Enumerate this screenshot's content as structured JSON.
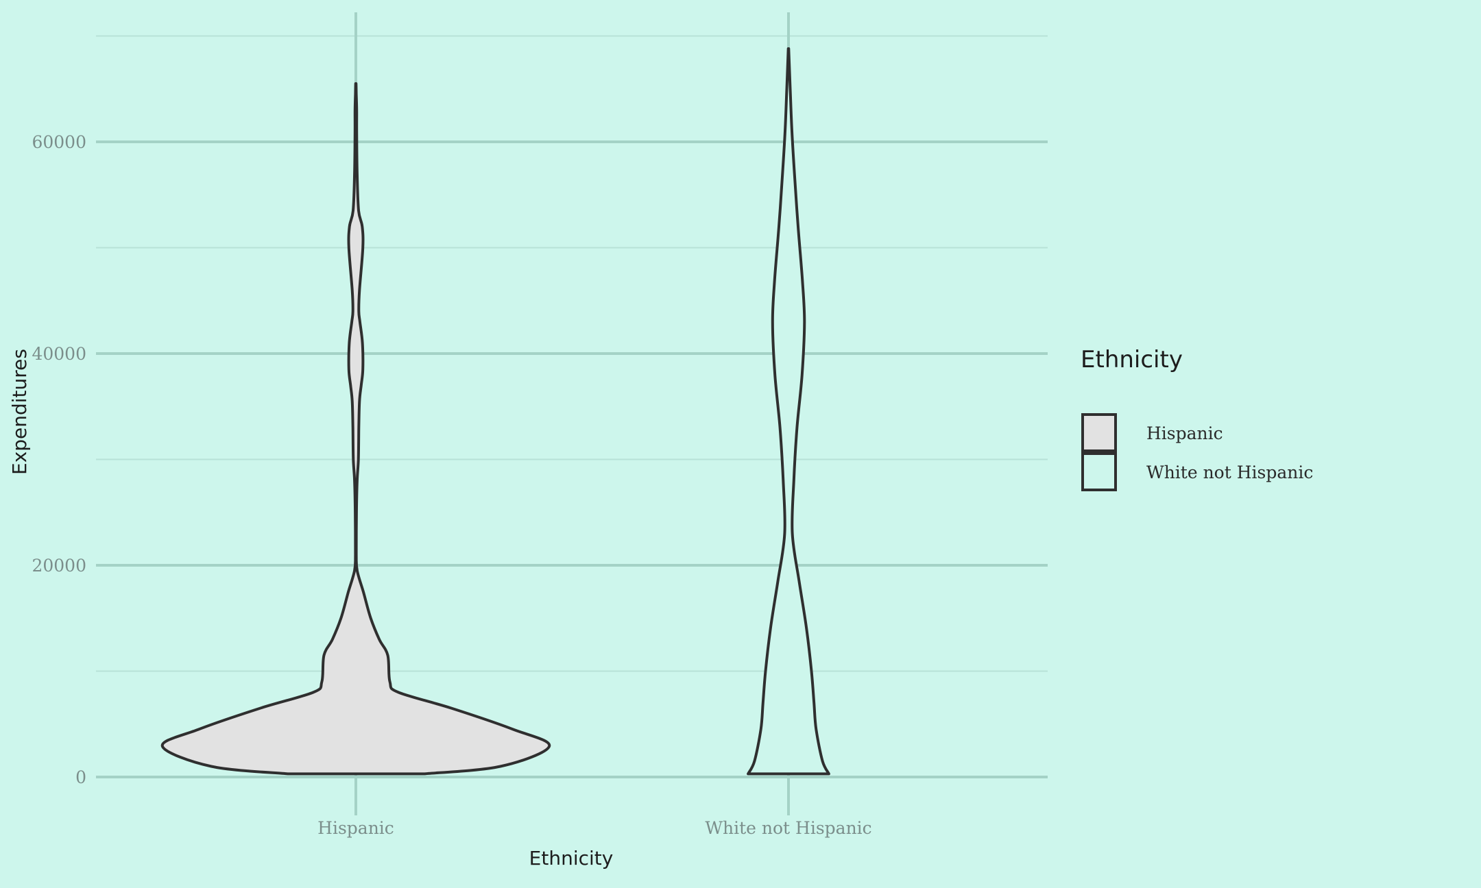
{
  "chart_data": {
    "type": "violin",
    "title": "",
    "xlabel": "Ethnicity",
    "ylabel": "Expenditures",
    "categories": [
      "Hispanic",
      "White not Hispanic"
    ],
    "ylim": [
      0,
      70000
    ],
    "y_ticks": [
      0,
      20000,
      40000,
      60000
    ],
    "y_tick_labels": [
      "0",
      "20000",
      "40000",
      "60000"
    ],
    "grid": true,
    "legend": {
      "title": "Ethnicity",
      "position": "right",
      "entries": [
        "Hispanic",
        "White not Hispanic"
      ]
    },
    "colors": {
      "background": "#cdf6ec",
      "Hispanic": "#e2e2e2",
      "White not Hispanic": "#cdf6ec",
      "outline": "#2f2f2f"
    },
    "series": [
      {
        "name": "Hispanic",
        "range": [
          300,
          65500
        ],
        "density_profile": [
          [
            300,
            0.32
          ],
          [
            1000,
            0.68
          ],
          [
            2900,
            0.91
          ],
          [
            4500,
            0.74
          ],
          [
            6500,
            0.45
          ],
          [
            8000,
            0.2
          ],
          [
            9000,
            0.16
          ],
          [
            11500,
            0.15
          ],
          [
            13000,
            0.11
          ],
          [
            15000,
            0.07
          ],
          [
            17500,
            0.035
          ],
          [
            19500,
            0.006
          ],
          [
            21000,
            0.002
          ],
          [
            25000,
            0.003
          ],
          [
            28000,
            0.006
          ],
          [
            30000,
            0.012
          ],
          [
            33000,
            0.014
          ],
          [
            35500,
            0.017
          ],
          [
            37000,
            0.025
          ],
          [
            38500,
            0.033
          ],
          [
            41000,
            0.031
          ],
          [
            43000,
            0.019
          ],
          [
            44000,
            0.014
          ],
          [
            46000,
            0.017
          ],
          [
            50000,
            0.033
          ],
          [
            52000,
            0.03
          ],
          [
            53500,
            0.013
          ],
          [
            57000,
            0.006
          ],
          [
            61000,
            0.004
          ],
          [
            63000,
            0.004
          ],
          [
            64500,
            0.002
          ],
          [
            65500,
            0.001
          ]
        ]
      },
      {
        "name": "White not Hispanic",
        "range": [
          300,
          68800
        ],
        "density_profile": [
          [
            300,
            0.19
          ],
          [
            1500,
            0.16
          ],
          [
            4500,
            0.13
          ],
          [
            7000,
            0.12
          ],
          [
            10000,
            0.108
          ],
          [
            14000,
            0.085
          ],
          [
            18500,
            0.05
          ],
          [
            23000,
            0.018
          ],
          [
            28000,
            0.025
          ],
          [
            33000,
            0.04
          ],
          [
            38000,
            0.064
          ],
          [
            43000,
            0.075
          ],
          [
            47000,
            0.065
          ],
          [
            52000,
            0.045
          ],
          [
            57000,
            0.028
          ],
          [
            61000,
            0.016
          ],
          [
            65000,
            0.008
          ],
          [
            68800,
            0.001
          ]
        ]
      }
    ]
  }
}
